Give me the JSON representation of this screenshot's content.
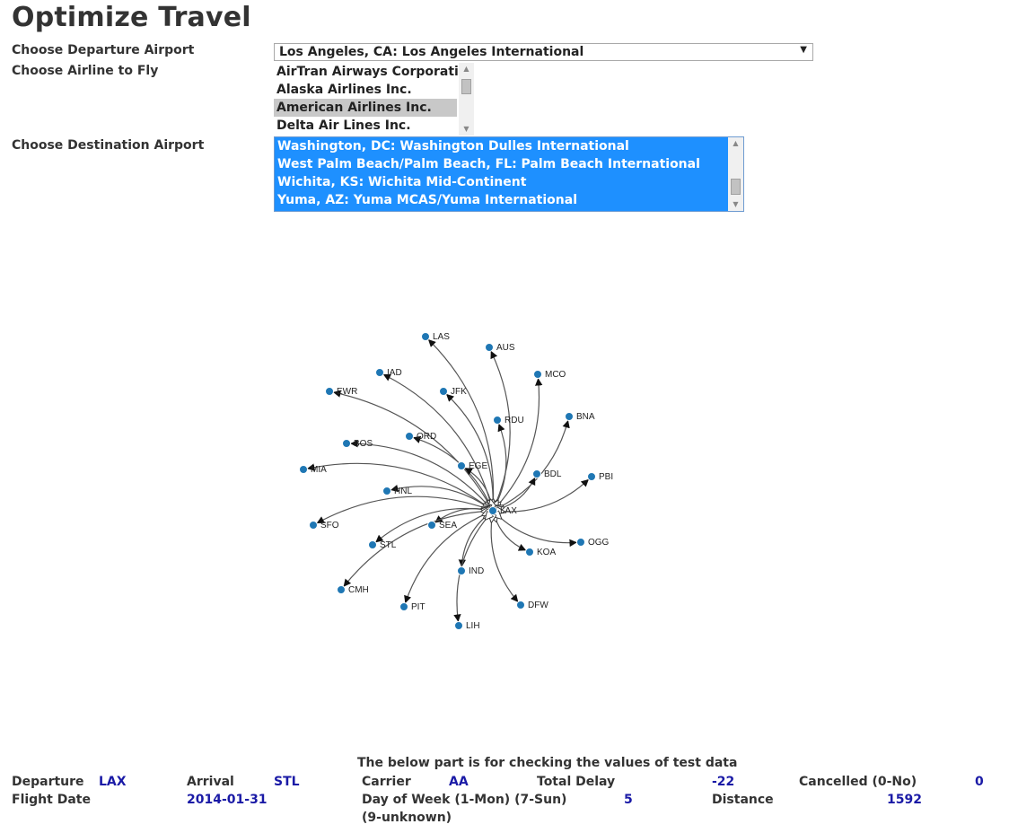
{
  "title": "Optimize Travel",
  "labels": {
    "departure": "Choose Departure Airport",
    "airline": "Choose Airline to Fly",
    "destination": "Choose Destination Airport"
  },
  "departure_select": {
    "value": "Los Angeles, CA: Los Angeles International"
  },
  "airlines": [
    {
      "label": "AirTran Airways Corporation",
      "selected": false
    },
    {
      "label": "Alaska Airlines Inc.",
      "selected": false
    },
    {
      "label": "American Airlines Inc.",
      "selected": true
    },
    {
      "label": "Delta Air Lines Inc.",
      "selected": false
    }
  ],
  "destinations": [
    {
      "label": "Washington, DC: Washington Dulles International"
    },
    {
      "label": "West Palm Beach/Palm Beach, FL: Palm Beach International"
    },
    {
      "label": "Wichita, KS: Wichita Mid-Continent"
    },
    {
      "label": "Yuma, AZ: Yuma MCAS/Yuma International"
    }
  ],
  "graph": {
    "hub": "LAX",
    "destinations": [
      "LAS",
      "AUS",
      "MCO",
      "IAD",
      "JFK",
      "EWR",
      "RDU",
      "BNA",
      "ORD",
      "BOS",
      "EGE",
      "BDL",
      "PBI",
      "MIA",
      "HNL",
      "SFO",
      "SEA",
      "STL",
      "KOA",
      "OGG",
      "IND",
      "CMH",
      "PIT",
      "DFW",
      "LIH"
    ],
    "colors": {
      "node": "#1f77b4",
      "edge": "#555555"
    }
  },
  "bottom": {
    "note": "The below part is for checking the values of test data",
    "departure_label": "Departure",
    "departure_value": "LAX",
    "arrival_label": "Arrival",
    "arrival_value": "STL",
    "carrier_label": "Carrier",
    "carrier_value": "AA",
    "delay_label": "Total Delay",
    "delay_value": "-22",
    "cancelled_label": "Cancelled (0-No)",
    "cancelled_value": "0",
    "date_label": "Flight Date",
    "date_value": "2014-01-31",
    "dow_label": "Day of Week (1-Mon) (7-Sun) (9-unknown)",
    "dow_value": "5",
    "distance_label": "Distance",
    "distance_value": "1592"
  }
}
